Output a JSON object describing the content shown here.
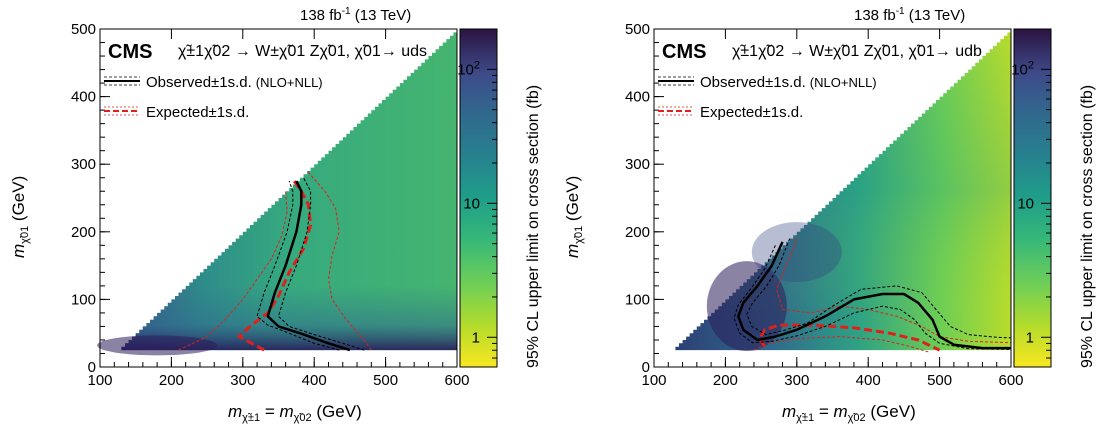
{
  "chart_data": [
    {
      "type": "heatmap",
      "panel": "left",
      "cms_label": "CMS",
      "lumi": {
        "value": "138 fb",
        "sup": "-1",
        "energy": "(13 TeV)"
      },
      "process": "χ̃±1χ̃02 → W±χ̃01 Zχ̃01,  χ̃01→ uds",
      "xlabel": "m_χ̃±1 = m_χ̃02  (GeV)",
      "ylabel": "m_χ̃01  (GeV)",
      "zlabel": "95% CL upper limit on cross section (fb)",
      "xlim": [
        100,
        600
      ],
      "ylim": [
        0,
        500
      ],
      "zscale": "log",
      "zlim": [
        0.6,
        200
      ],
      "x_ticks": [
        100,
        200,
        300,
        400,
        500,
        600
      ],
      "y_ticks": [
        0,
        100,
        200,
        300,
        400,
        500
      ],
      "z_ticks": [
        {
          "value": 1,
          "label": "1"
        },
        {
          "value": 10,
          "label": "10"
        },
        {
          "value": 100,
          "label": "10",
          "sup": "2"
        }
      ],
      "legend": [
        {
          "label": "Observed±1s.d.",
          "note": "(NLO+NLL)",
          "color": "#000000",
          "style": "solid"
        },
        {
          "label": "Expected±1s.d.",
          "color": "#e0201b",
          "style": "dashed"
        }
      ],
      "series": {
        "observed": [
          [
            450,
            25
          ],
          [
            420,
            35
          ],
          [
            380,
            50
          ],
          [
            350,
            60
          ],
          [
            335,
            75
          ],
          [
            345,
            110
          ],
          [
            360,
            150
          ],
          [
            375,
            200
          ],
          [
            382,
            240
          ],
          [
            382,
            260
          ],
          [
            375,
            275
          ]
        ],
        "observed_up": [
          [
            470,
            25
          ],
          [
            440,
            35
          ],
          [
            400,
            48
          ],
          [
            365,
            60
          ],
          [
            350,
            75
          ],
          [
            360,
            110
          ],
          [
            375,
            150
          ],
          [
            390,
            200
          ],
          [
            395,
            240
          ],
          [
            395,
            260
          ],
          [
            385,
            280
          ]
        ],
        "observed_down": [
          [
            435,
            25
          ],
          [
            400,
            35
          ],
          [
            360,
            52
          ],
          [
            335,
            62
          ],
          [
            320,
            75
          ],
          [
            330,
            110
          ],
          [
            345,
            150
          ],
          [
            362,
            200
          ],
          [
            370,
            240
          ],
          [
            370,
            260
          ],
          [
            365,
            275
          ]
        ],
        "expected": [
          [
            330,
            25
          ],
          [
            295,
            45
          ],
          [
            310,
            60
          ],
          [
            335,
            80
          ],
          [
            350,
            105
          ],
          [
            365,
            140
          ],
          [
            385,
            175
          ],
          [
            395,
            210
          ],
          [
            392,
            240
          ],
          [
            382,
            260
          ],
          [
            372,
            275
          ]
        ],
        "expected_up": [
          [
            480,
            25
          ],
          [
            470,
            40
          ],
          [
            445,
            70
          ],
          [
            425,
            100
          ],
          [
            420,
            130
          ],
          [
            425,
            165
          ],
          [
            435,
            200
          ],
          [
            430,
            235
          ],
          [
            415,
            260
          ],
          [
            390,
            290
          ]
        ],
        "expected_down": [
          [
            210,
            25
          ],
          [
            250,
            45
          ],
          [
            275,
            70
          ],
          [
            300,
            100
          ],
          [
            320,
            130
          ],
          [
            340,
            160
          ],
          [
            355,
            195
          ],
          [
            362,
            230
          ],
          [
            360,
            260
          ]
        ]
      }
    },
    {
      "type": "heatmap",
      "panel": "right",
      "cms_label": "CMS",
      "lumi": {
        "value": "138 fb",
        "sup": "-1",
        "energy": "(13 TeV)"
      },
      "process": "χ̃±1χ̃02 → W±χ̃01 Zχ̃01,  χ̃01→ udb",
      "xlabel": "m_χ̃±1 = m_χ̃02  (GeV)",
      "ylabel": "m_χ̃01  (GeV)",
      "zlabel": "95% CL upper limit on cross section (fb)",
      "xlim": [
        100,
        600
      ],
      "ylim": [
        0,
        500
      ],
      "zscale": "log",
      "zlim": [
        0.6,
        200
      ],
      "x_ticks": [
        100,
        200,
        300,
        400,
        500,
        600
      ],
      "y_ticks": [
        0,
        100,
        200,
        300,
        400,
        500
      ],
      "z_ticks": [
        {
          "value": 1,
          "label": "1"
        },
        {
          "value": 10,
          "label": "10"
        },
        {
          "value": 100,
          "label": "10",
          "sup": "2"
        }
      ],
      "legend": [
        {
          "label": "Observed±1s.d.",
          "note": "(NLO+NLL)",
          "color": "#000000",
          "style": "solid"
        },
        {
          "label": "Expected±1s.d.",
          "color": "#e0201b",
          "style": "dashed"
        }
      ],
      "series": {
        "observed": [
          [
            280,
            185
          ],
          [
            265,
            150
          ],
          [
            245,
            120
          ],
          [
            225,
            95
          ],
          [
            218,
            75
          ],
          [
            225,
            55
          ],
          [
            245,
            40
          ],
          [
            270,
            45
          ],
          [
            300,
            55
          ],
          [
            340,
            75
          ],
          [
            380,
            100
          ],
          [
            420,
            108
          ],
          [
            450,
            108
          ],
          [
            470,
            95
          ],
          [
            490,
            70
          ],
          [
            500,
            45
          ],
          [
            520,
            33
          ],
          [
            560,
            28
          ],
          [
            600,
            28
          ]
        ],
        "observed_up": [
          [
            290,
            190
          ],
          [
            275,
            150
          ],
          [
            258,
            120
          ],
          [
            238,
            95
          ],
          [
            230,
            78
          ],
          [
            237,
            60
          ],
          [
            257,
            48
          ],
          [
            285,
            55
          ],
          [
            315,
            65
          ],
          [
            350,
            90
          ],
          [
            390,
            115
          ],
          [
            440,
            120
          ],
          [
            475,
            110
          ],
          [
            495,
            85
          ],
          [
            515,
            60
          ],
          [
            540,
            48
          ],
          [
            580,
            44
          ],
          [
            600,
            43
          ]
        ],
        "observed_down": [
          [
            270,
            180
          ],
          [
            255,
            145
          ],
          [
            235,
            115
          ],
          [
            218,
            92
          ],
          [
            212,
            72
          ],
          [
            220,
            50
          ],
          [
            238,
            36
          ],
          [
            265,
            38
          ],
          [
            300,
            46
          ],
          [
            340,
            60
          ],
          [
            380,
            80
          ],
          [
            420,
            90
          ],
          [
            445,
            85
          ],
          [
            465,
            70
          ],
          [
            480,
            50
          ],
          [
            500,
            35
          ],
          [
            540,
            27
          ],
          [
            600,
            26
          ]
        ],
        "expected": [
          [
            255,
            30
          ],
          [
            248,
            42
          ],
          [
            255,
            55
          ],
          [
            275,
            62
          ],
          [
            320,
            62
          ],
          [
            380,
            58
          ],
          [
            430,
            50
          ],
          [
            470,
            40
          ],
          [
            500,
            25
          ]
        ],
        "expected_up": [
          [
            300,
            190
          ],
          [
            285,
            150
          ],
          [
            272,
            115
          ],
          [
            280,
            85
          ],
          [
            320,
            80
          ],
          [
            360,
            90
          ],
          [
            400,
            85
          ],
          [
            440,
            75
          ],
          [
            475,
            60
          ],
          [
            500,
            45
          ],
          [
            540,
            38
          ],
          [
            600,
            36
          ]
        ],
        "expected_down": [
          [
            240,
            25
          ],
          [
            260,
            35
          ],
          [
            300,
            42
          ],
          [
            360,
            45
          ],
          [
            420,
            40
          ],
          [
            460,
            30
          ],
          [
            485,
            22
          ]
        ]
      }
    }
  ]
}
